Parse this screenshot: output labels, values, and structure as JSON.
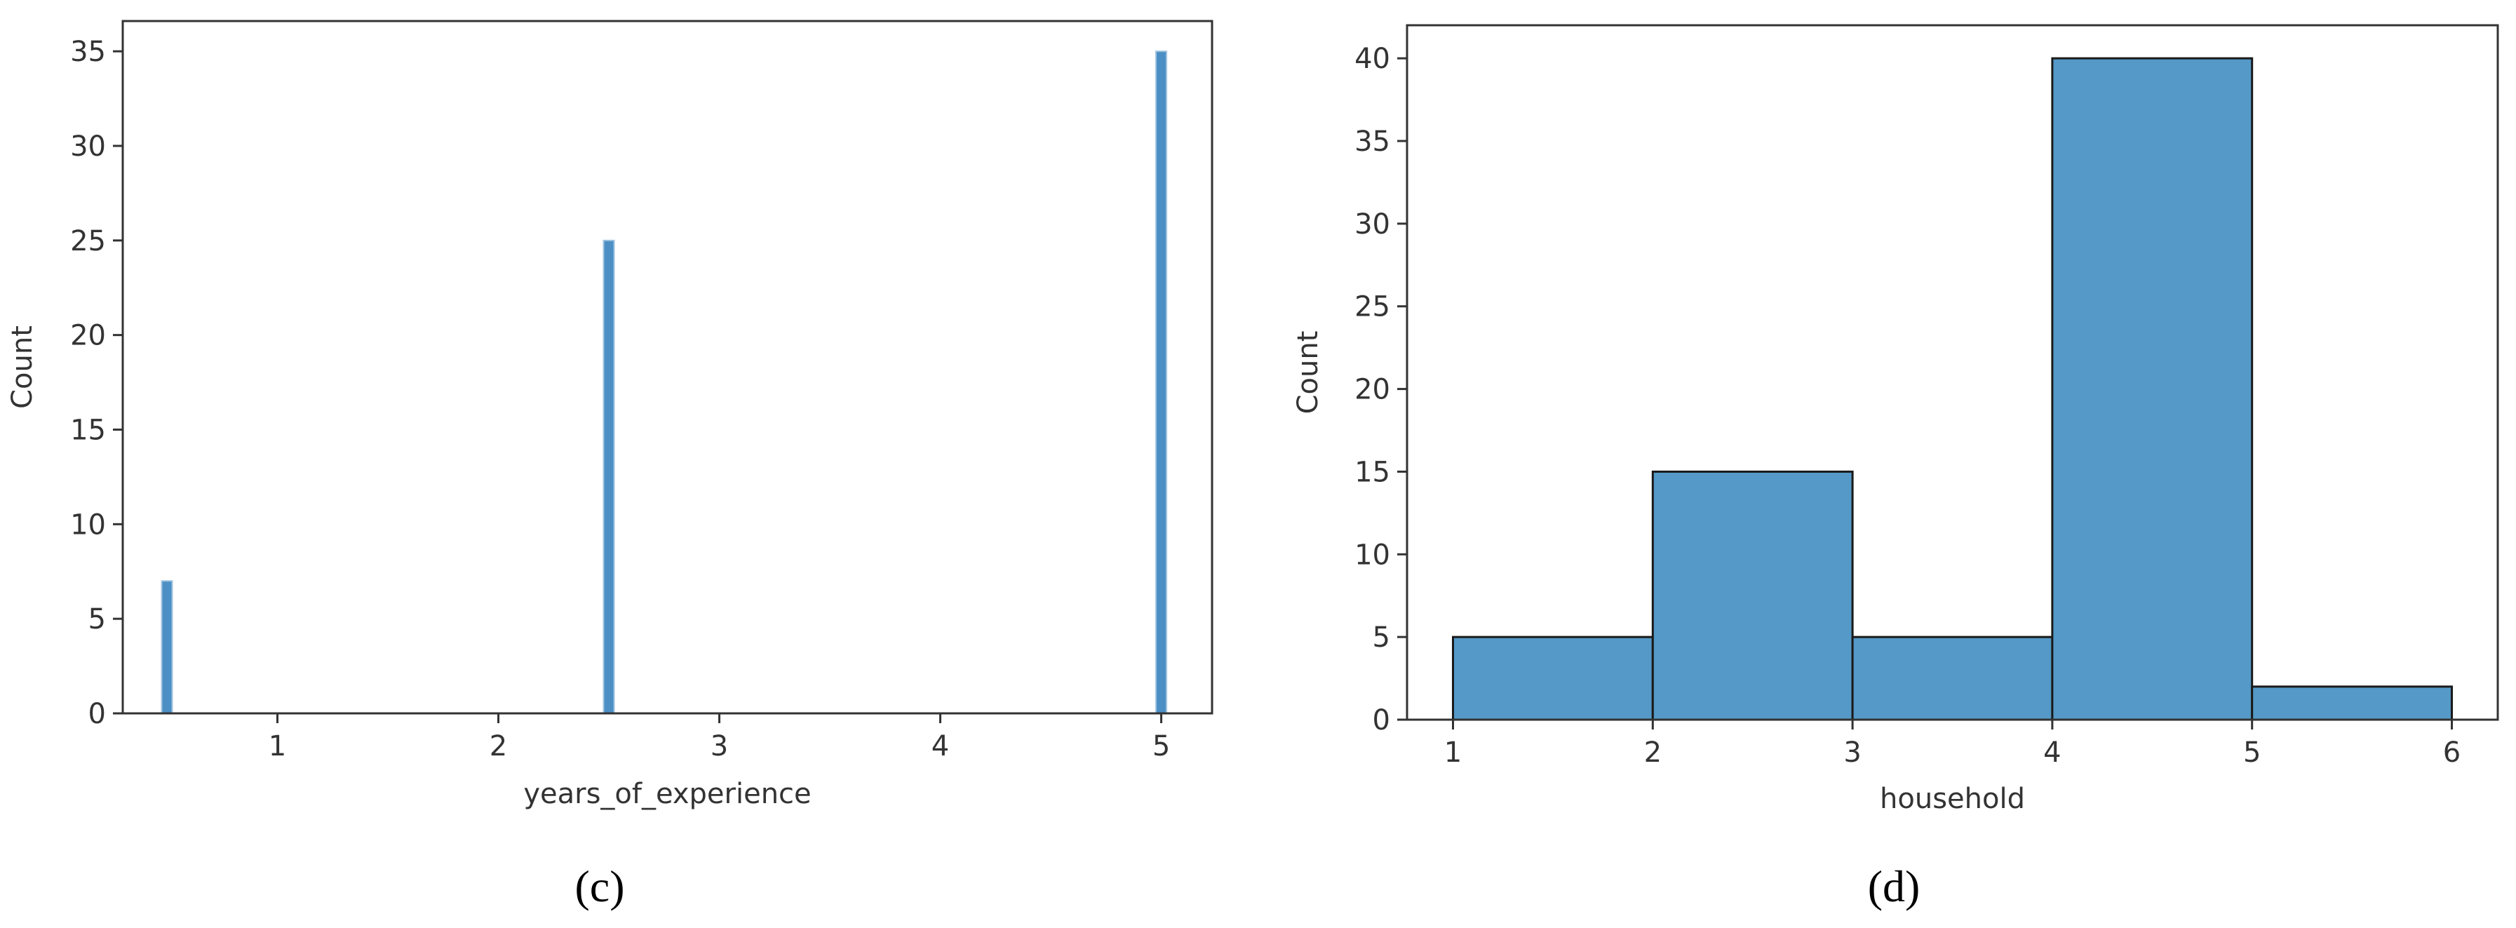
{
  "chart_data": [
    {
      "type": "bar",
      "caption": "(c)",
      "xlabel": "years_of_experience",
      "ylabel": "Count",
      "x_ticks": [
        1,
        2,
        3,
        4,
        5
      ],
      "y_ticks": [
        0,
        5,
        10,
        15,
        20,
        25,
        30,
        35
      ],
      "xlim": [
        0.3,
        5.23
      ],
      "ylim": [
        0,
        36.6
      ],
      "bars": [
        {
          "x": 0.5,
          "value": 7
        },
        {
          "x": 2.5,
          "value": 25
        },
        {
          "x": 5.0,
          "value": 35
        }
      ],
      "bar_color": "#4c8fc4",
      "grid": false
    },
    {
      "type": "bar",
      "caption": "(d)",
      "xlabel": "household",
      "ylabel": "Count",
      "x_ticks": [
        1,
        2,
        3,
        4,
        5,
        6
      ],
      "y_ticks": [
        0,
        5,
        10,
        15,
        20,
        25,
        30,
        35,
        40
      ],
      "xlim": [
        0.77,
        6.23
      ],
      "ylim": [
        0,
        42
      ],
      "bins": [
        {
          "start": 1,
          "end": 2,
          "value": 5
        },
        {
          "start": 2,
          "end": 3,
          "value": 15
        },
        {
          "start": 3,
          "end": 4,
          "value": 5
        },
        {
          "start": 4,
          "end": 5,
          "value": 40
        },
        {
          "start": 5,
          "end": 6,
          "value": 2
        }
      ],
      "bar_color": "#5499c7",
      "grid": false
    }
  ]
}
